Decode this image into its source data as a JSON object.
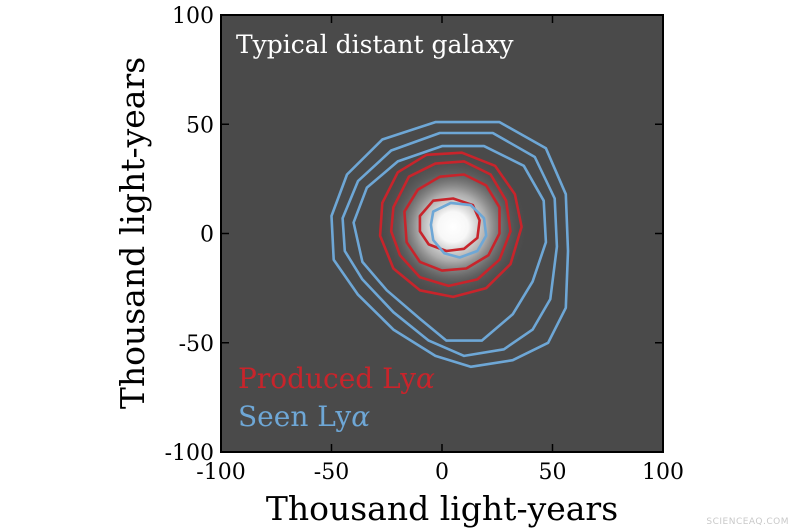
{
  "chart_data": {
    "type": "contour",
    "title": "Typical distant galaxy",
    "xlabel": "Thousand light-years",
    "ylabel": "Thousand light-years",
    "xlim": [
      -100,
      100
    ],
    "ylim": [
      -100,
      100
    ],
    "x_ticks": [
      -100,
      -50,
      0,
      50,
      100
    ],
    "y_ticks": [
      -100,
      -50,
      0,
      50,
      100
    ],
    "x_tick_labels": [
      "-100",
      "-50",
      "0",
      "50",
      "100"
    ],
    "y_tick_labels": [
      "-100",
      "-50",
      "0",
      "50",
      "100"
    ],
    "background_color": "#4a4a4a",
    "galaxy_center": [
      5,
      3
    ],
    "legend_placement": "bottom-left",
    "series": [
      {
        "name": "Produced Lyα",
        "legend_text": "Produced Ly",
        "legend_symbol": "α",
        "color": "#c8242b",
        "contours": [
          [
            [
              -10,
              8
            ],
            [
              -4,
              15
            ],
            [
              5,
              16
            ],
            [
              14,
              13
            ],
            [
              17,
              6
            ],
            [
              16,
              -2
            ],
            [
              10,
              -7
            ],
            [
              2,
              -8
            ],
            [
              -6,
              -5
            ],
            [
              -10,
              1
            ]
          ],
          [
            [
              -17,
              10
            ],
            [
              -11,
              20
            ],
            [
              -1,
              26
            ],
            [
              10,
              27
            ],
            [
              20,
              22
            ],
            [
              26,
              12
            ],
            [
              26,
              0
            ],
            [
              21,
              -10
            ],
            [
              11,
              -16
            ],
            [
              0,
              -17
            ],
            [
              -10,
              -13
            ],
            [
              -16,
              -4
            ]
          ],
          [
            [
              -22,
              12
            ],
            [
              -15,
              26
            ],
            [
              -3,
              32
            ],
            [
              10,
              33
            ],
            [
              22,
              27
            ],
            [
              29,
              15
            ],
            [
              31,
              1
            ],
            [
              26,
              -12
            ],
            [
              16,
              -21
            ],
            [
              3,
              -24
            ],
            [
              -10,
              -20
            ],
            [
              -19,
              -10
            ],
            [
              -23,
              1
            ]
          ],
          [
            [
              -27,
              14
            ],
            [
              -20,
              28
            ],
            [
              -7,
              36
            ],
            [
              9,
              37
            ],
            [
              24,
              31
            ],
            [
              33,
              18
            ],
            [
              36,
              3
            ],
            [
              31,
              -14
            ],
            [
              20,
              -25
            ],
            [
              5,
              -29
            ],
            [
              -10,
              -26
            ],
            [
              -22,
              -16
            ],
            [
              -28,
              -1
            ]
          ]
        ]
      },
      {
        "name": "Seen Lyα",
        "legend_text": "Seen Ly",
        "legend_symbol": "α",
        "color": "#6ea7d6",
        "contours": [
          [
            [
              -4,
              10
            ],
            [
              4,
              14
            ],
            [
              13,
              13
            ],
            [
              19,
              7
            ],
            [
              20,
              -1
            ],
            [
              16,
              -8
            ],
            [
              8,
              -11
            ],
            [
              1,
              -9
            ],
            [
              -4,
              -3
            ],
            [
              -5,
              4
            ]
          ],
          [
            [
              -40,
              5
            ],
            [
              -34,
              21
            ],
            [
              -20,
              33
            ],
            [
              0,
              40
            ],
            [
              19,
              40
            ],
            [
              37,
              31
            ],
            [
              46,
              15
            ],
            [
              47,
              -4
            ],
            [
              41,
              -22
            ],
            [
              32,
              -37
            ],
            [
              18,
              -49
            ],
            [
              2,
              -49
            ],
            [
              -10,
              -39
            ],
            [
              -25,
              -26
            ],
            [
              -36,
              -13
            ]
          ],
          [
            [
              -45,
              7
            ],
            [
              -38,
              24
            ],
            [
              -23,
              38
            ],
            [
              -1,
              46
            ],
            [
              23,
              46
            ],
            [
              42,
              35
            ],
            [
              51,
              16
            ],
            [
              52,
              -6
            ],
            [
              49,
              -30
            ],
            [
              41,
              -44
            ],
            [
              28,
              -53
            ],
            [
              10,
              -56
            ],
            [
              -6,
              -49
            ],
            [
              -22,
              -36
            ],
            [
              -36,
              -21
            ],
            [
              -44,
              -8
            ]
          ],
          [
            [
              -50,
              8
            ],
            [
              -43,
              27
            ],
            [
              -27,
              43
            ],
            [
              -3,
              51
            ],
            [
              26,
              51
            ],
            [
              47,
              39
            ],
            [
              56,
              18
            ],
            [
              57,
              -8
            ],
            [
              56,
              -34
            ],
            [
              48,
              -50
            ],
            [
              32,
              -58
            ],
            [
              13,
              -61
            ],
            [
              -3,
              -56
            ],
            [
              -22,
              -44
            ],
            [
              -38,
              -28
            ],
            [
              -49,
              -12
            ]
          ]
        ]
      }
    ]
  },
  "watermark": {
    "text": "SCIENCEAQ.COM"
  }
}
